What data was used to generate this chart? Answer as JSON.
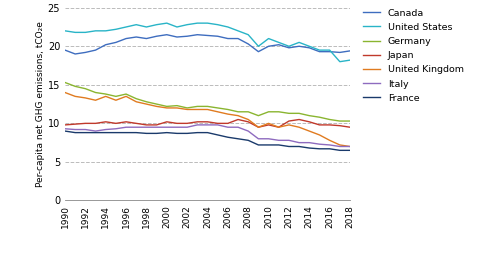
{
  "years": [
    1990,
    1991,
    1992,
    1993,
    1994,
    1995,
    1996,
    1997,
    1998,
    1999,
    2000,
    2001,
    2002,
    2003,
    2004,
    2005,
    2006,
    2007,
    2008,
    2009,
    2010,
    2011,
    2012,
    2013,
    2014,
    2015,
    2016,
    2017,
    2018
  ],
  "Canada": [
    19.5,
    19.0,
    19.2,
    19.5,
    20.2,
    20.5,
    21.0,
    21.2,
    21.0,
    21.3,
    21.5,
    21.2,
    21.3,
    21.5,
    21.4,
    21.3,
    21.0,
    21.0,
    20.3,
    19.3,
    20.0,
    20.2,
    19.8,
    20.0,
    19.8,
    19.3,
    19.3,
    19.2,
    19.4
  ],
  "United States": [
    22.0,
    21.8,
    21.8,
    22.0,
    22.0,
    22.2,
    22.5,
    22.8,
    22.5,
    22.8,
    23.0,
    22.5,
    22.8,
    23.0,
    23.0,
    22.8,
    22.5,
    22.0,
    21.5,
    20.0,
    21.0,
    20.5,
    20.0,
    20.5,
    20.0,
    19.5,
    19.5,
    18.0,
    18.2
  ],
  "Germany": [
    15.3,
    14.8,
    14.5,
    14.0,
    13.8,
    13.5,
    13.8,
    13.2,
    12.8,
    12.5,
    12.2,
    12.3,
    12.0,
    12.2,
    12.2,
    12.0,
    11.8,
    11.5,
    11.5,
    11.0,
    11.5,
    11.5,
    11.3,
    11.3,
    11.0,
    10.8,
    10.5,
    10.3,
    10.3
  ],
  "Japan": [
    9.8,
    9.9,
    10.0,
    10.0,
    10.2,
    10.0,
    10.2,
    10.0,
    9.8,
    9.8,
    10.2,
    10.0,
    10.0,
    10.2,
    10.2,
    10.0,
    10.0,
    10.5,
    10.2,
    9.5,
    9.8,
    9.5,
    10.3,
    10.5,
    10.2,
    9.8,
    9.8,
    9.7,
    9.5
  ],
  "United Kingdom": [
    14.0,
    13.5,
    13.3,
    13.0,
    13.5,
    13.0,
    13.5,
    12.8,
    12.5,
    12.2,
    12.0,
    12.0,
    11.8,
    11.8,
    11.8,
    11.5,
    11.2,
    11.0,
    10.5,
    9.5,
    10.0,
    9.5,
    9.8,
    9.5,
    9.0,
    8.5,
    7.8,
    7.2,
    7.0
  ],
  "Italy": [
    9.3,
    9.2,
    9.2,
    9.0,
    9.2,
    9.3,
    9.5,
    9.5,
    9.5,
    9.5,
    9.5,
    9.5,
    9.5,
    9.8,
    9.8,
    9.8,
    9.5,
    9.5,
    9.0,
    8.0,
    8.0,
    7.8,
    7.8,
    7.5,
    7.5,
    7.3,
    7.2,
    7.0,
    7.0
  ],
  "France": [
    9.0,
    8.8,
    8.8,
    8.8,
    8.8,
    8.8,
    8.8,
    8.8,
    8.7,
    8.7,
    8.8,
    8.7,
    8.7,
    8.8,
    8.8,
    8.5,
    8.2,
    8.0,
    7.8,
    7.2,
    7.2,
    7.2,
    7.0,
    7.0,
    6.8,
    6.7,
    6.7,
    6.5,
    6.5
  ],
  "colors": {
    "Canada": "#3e6dbf",
    "United States": "#29b4c7",
    "Germany": "#8ab530",
    "Japan": "#c0392b",
    "United Kingdom": "#e07b20",
    "Italy": "#8e6bbf",
    "France": "#1a3a6b"
  },
  "ylabel": "Per-capita net GHG emissions, tCO₂e",
  "ylim": [
    0,
    25
  ],
  "yticks": [
    0,
    5,
    10,
    15,
    20,
    25
  ],
  "background_color": "#ffffff",
  "grid_color": "#bbbbbb"
}
